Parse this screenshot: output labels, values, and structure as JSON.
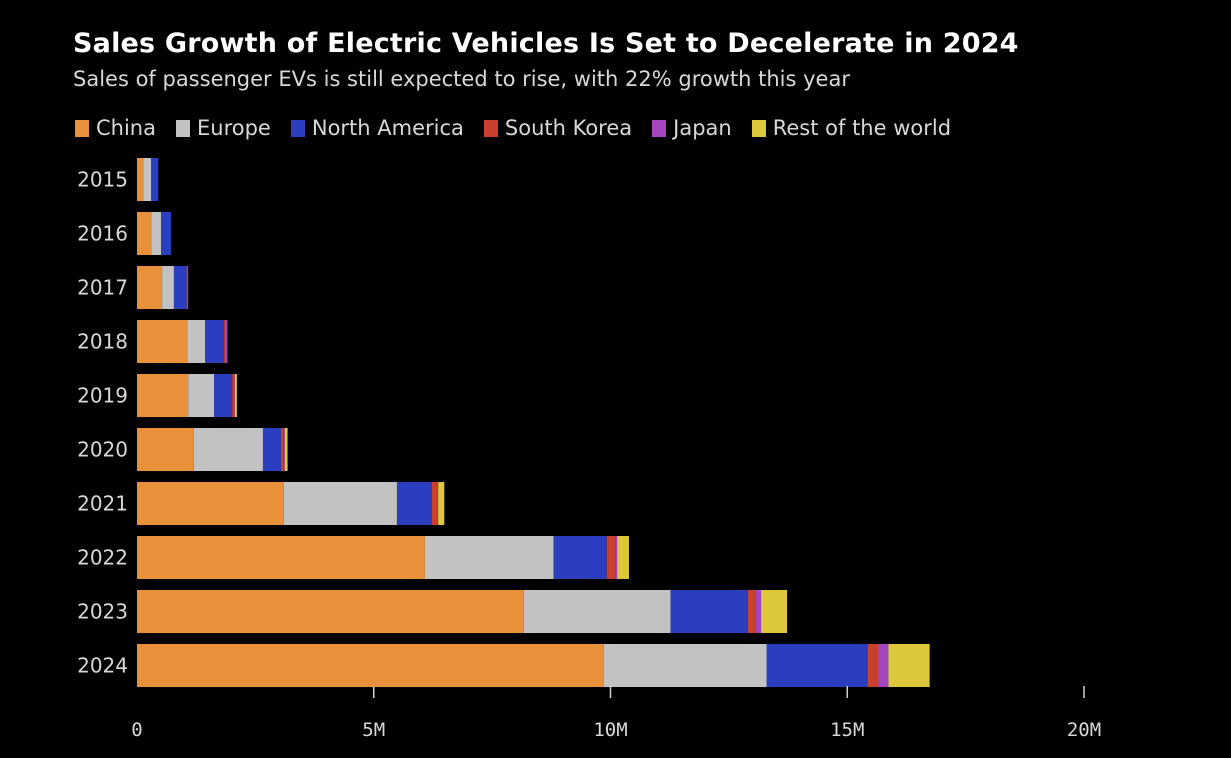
{
  "chart_data": {
    "type": "bar",
    "orientation": "horizontal",
    "stacked": true,
    "title": "Sales Growth of Electric Vehicles Is Set to Decelerate in 2024",
    "subtitle": "Sales of passenger EVs is still expected to rise, with 22% growth this year",
    "xlabel": "",
    "ylabel": "",
    "xlim": [
      0,
      20000000
    ],
    "x_ticks": [
      {
        "value": 0,
        "label": "0"
      },
      {
        "value": 5000000,
        "label": "5M"
      },
      {
        "value": 10000000,
        "label": "10M"
      },
      {
        "value": 15000000,
        "label": "15M"
      },
      {
        "value": 20000000,
        "label": "20M"
      }
    ],
    "grid": false,
    "legend_position": "top-left",
    "categories": [
      "2015",
      "2016",
      "2017",
      "2018",
      "2019",
      "2020",
      "2021",
      "2022",
      "2023",
      "2024"
    ],
    "series": [
      {
        "name": "China",
        "color": "#E8913A",
        "values": [
          0.13,
          0.3,
          0.53,
          1.06,
          1.08,
          1.2,
          3.1,
          6.08,
          8.17,
          9.86
        ]
      },
      {
        "name": "Europe",
        "color": "#C2C2C2",
        "values": [
          0.17,
          0.21,
          0.25,
          0.38,
          0.55,
          1.46,
          2.39,
          2.72,
          3.1,
          3.44
        ]
      },
      {
        "name": "North America",
        "color": "#2A3EBF",
        "values": [
          0.15,
          0.21,
          0.27,
          0.4,
          0.38,
          0.38,
          0.74,
          1.12,
          1.63,
          2.13
        ]
      },
      {
        "name": "South Korea",
        "color": "#C9402E",
        "values": [
          0.0,
          0.0,
          0.01,
          0.04,
          0.05,
          0.06,
          0.11,
          0.19,
          0.17,
          0.23
        ]
      },
      {
        "name": "Japan",
        "color": "#A347C0",
        "values": [
          0.0,
          0.0,
          0.02,
          0.03,
          0.01,
          0.02,
          0.02,
          0.03,
          0.11,
          0.21
        ]
      },
      {
        "name": "Rest of the world",
        "color": "#DCC83A",
        "values": [
          0.0,
          0.0,
          0.0,
          0.0,
          0.04,
          0.06,
          0.13,
          0.25,
          0.55,
          0.87
        ]
      }
    ],
    "value_unit_multiplier": 1000000
  },
  "header": {
    "title": "Sales Growth of Electric Vehicles Is Set to Decelerate in 2024",
    "subtitle": "Sales of passenger EVs is still expected to rise, with 22% growth this year"
  },
  "legend": [
    {
      "label": "China",
      "color": "#E8913A"
    },
    {
      "label": "Europe",
      "color": "#C2C2C2"
    },
    {
      "label": "North America",
      "color": "#2A3EBF"
    },
    {
      "label": "South Korea",
      "color": "#C9402E"
    },
    {
      "label": "Japan",
      "color": "#A347C0"
    },
    {
      "label": "Rest of the world",
      "color": "#DCC83A"
    }
  ]
}
